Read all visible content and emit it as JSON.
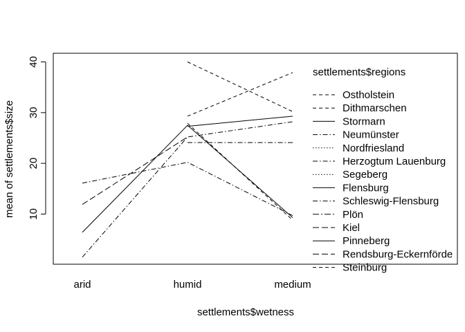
{
  "chart_data": {
    "type": "line",
    "title": "",
    "xlabel": "settlements$wetness",
    "ylabel": "mean of  settlements$size",
    "categories": [
      "arid",
      "humid",
      "medium"
    ],
    "ylim": [
      0,
      40
    ],
    "yticks": [
      10,
      20,
      30,
      40
    ],
    "legend": {
      "title": "settlements$regions",
      "position": "top-right"
    },
    "series": [
      {
        "name": "Ostholstein",
        "dash": "5,4",
        "values": [
          null,
          40.0,
          30.2
        ]
      },
      {
        "name": "Dithmarschen",
        "dash": "5,4",
        "values": [
          null,
          29.3,
          37.9
        ]
      },
      {
        "name": "Stormarn",
        "dash": "",
        "values": [
          null,
          27.3,
          29.3
        ]
      },
      {
        "name": "Neumünster",
        "dash": "7,3,1.5,3",
        "values": [
          1.5,
          25.2,
          28.2
        ]
      },
      {
        "name": "Nordfriesland",
        "dash": "1.5,2.5",
        "values": [
          null,
          null,
          null
        ]
      },
      {
        "name": "Herzogtum Lauenburg",
        "dash": "7,3,1.5,3",
        "values": [
          null,
          24.1,
          24.1
        ]
      },
      {
        "name": "Segeberg",
        "dash": "1.5,2.5",
        "values": [
          null,
          null,
          null
        ]
      },
      {
        "name": "Flensburg",
        "dash": "",
        "values": [
          null,
          null,
          null
        ]
      },
      {
        "name": "Schleswig-Flensburg",
        "dash": "7,3,1.5,3",
        "values": [
          16.1,
          20.2,
          9.7
        ]
      },
      {
        "name": "Plön",
        "dash": "9,3,2,3",
        "values": [
          null,
          null,
          null
        ]
      },
      {
        "name": "Kiel",
        "dash": "9,4",
        "values": [
          11.9,
          25.2,
          null
        ]
      },
      {
        "name": "Pinneberg",
        "dash": "",
        "values": [
          6.4,
          27.5,
          9.3
        ]
      },
      {
        "name": "Rendsburg-Eckernförde",
        "dash": "9,4",
        "values": [
          null,
          null,
          null
        ]
      },
      {
        "name": "Steinburg",
        "dash": "5,4",
        "values": [
          null,
          27.9,
          8.8
        ]
      }
    ]
  }
}
